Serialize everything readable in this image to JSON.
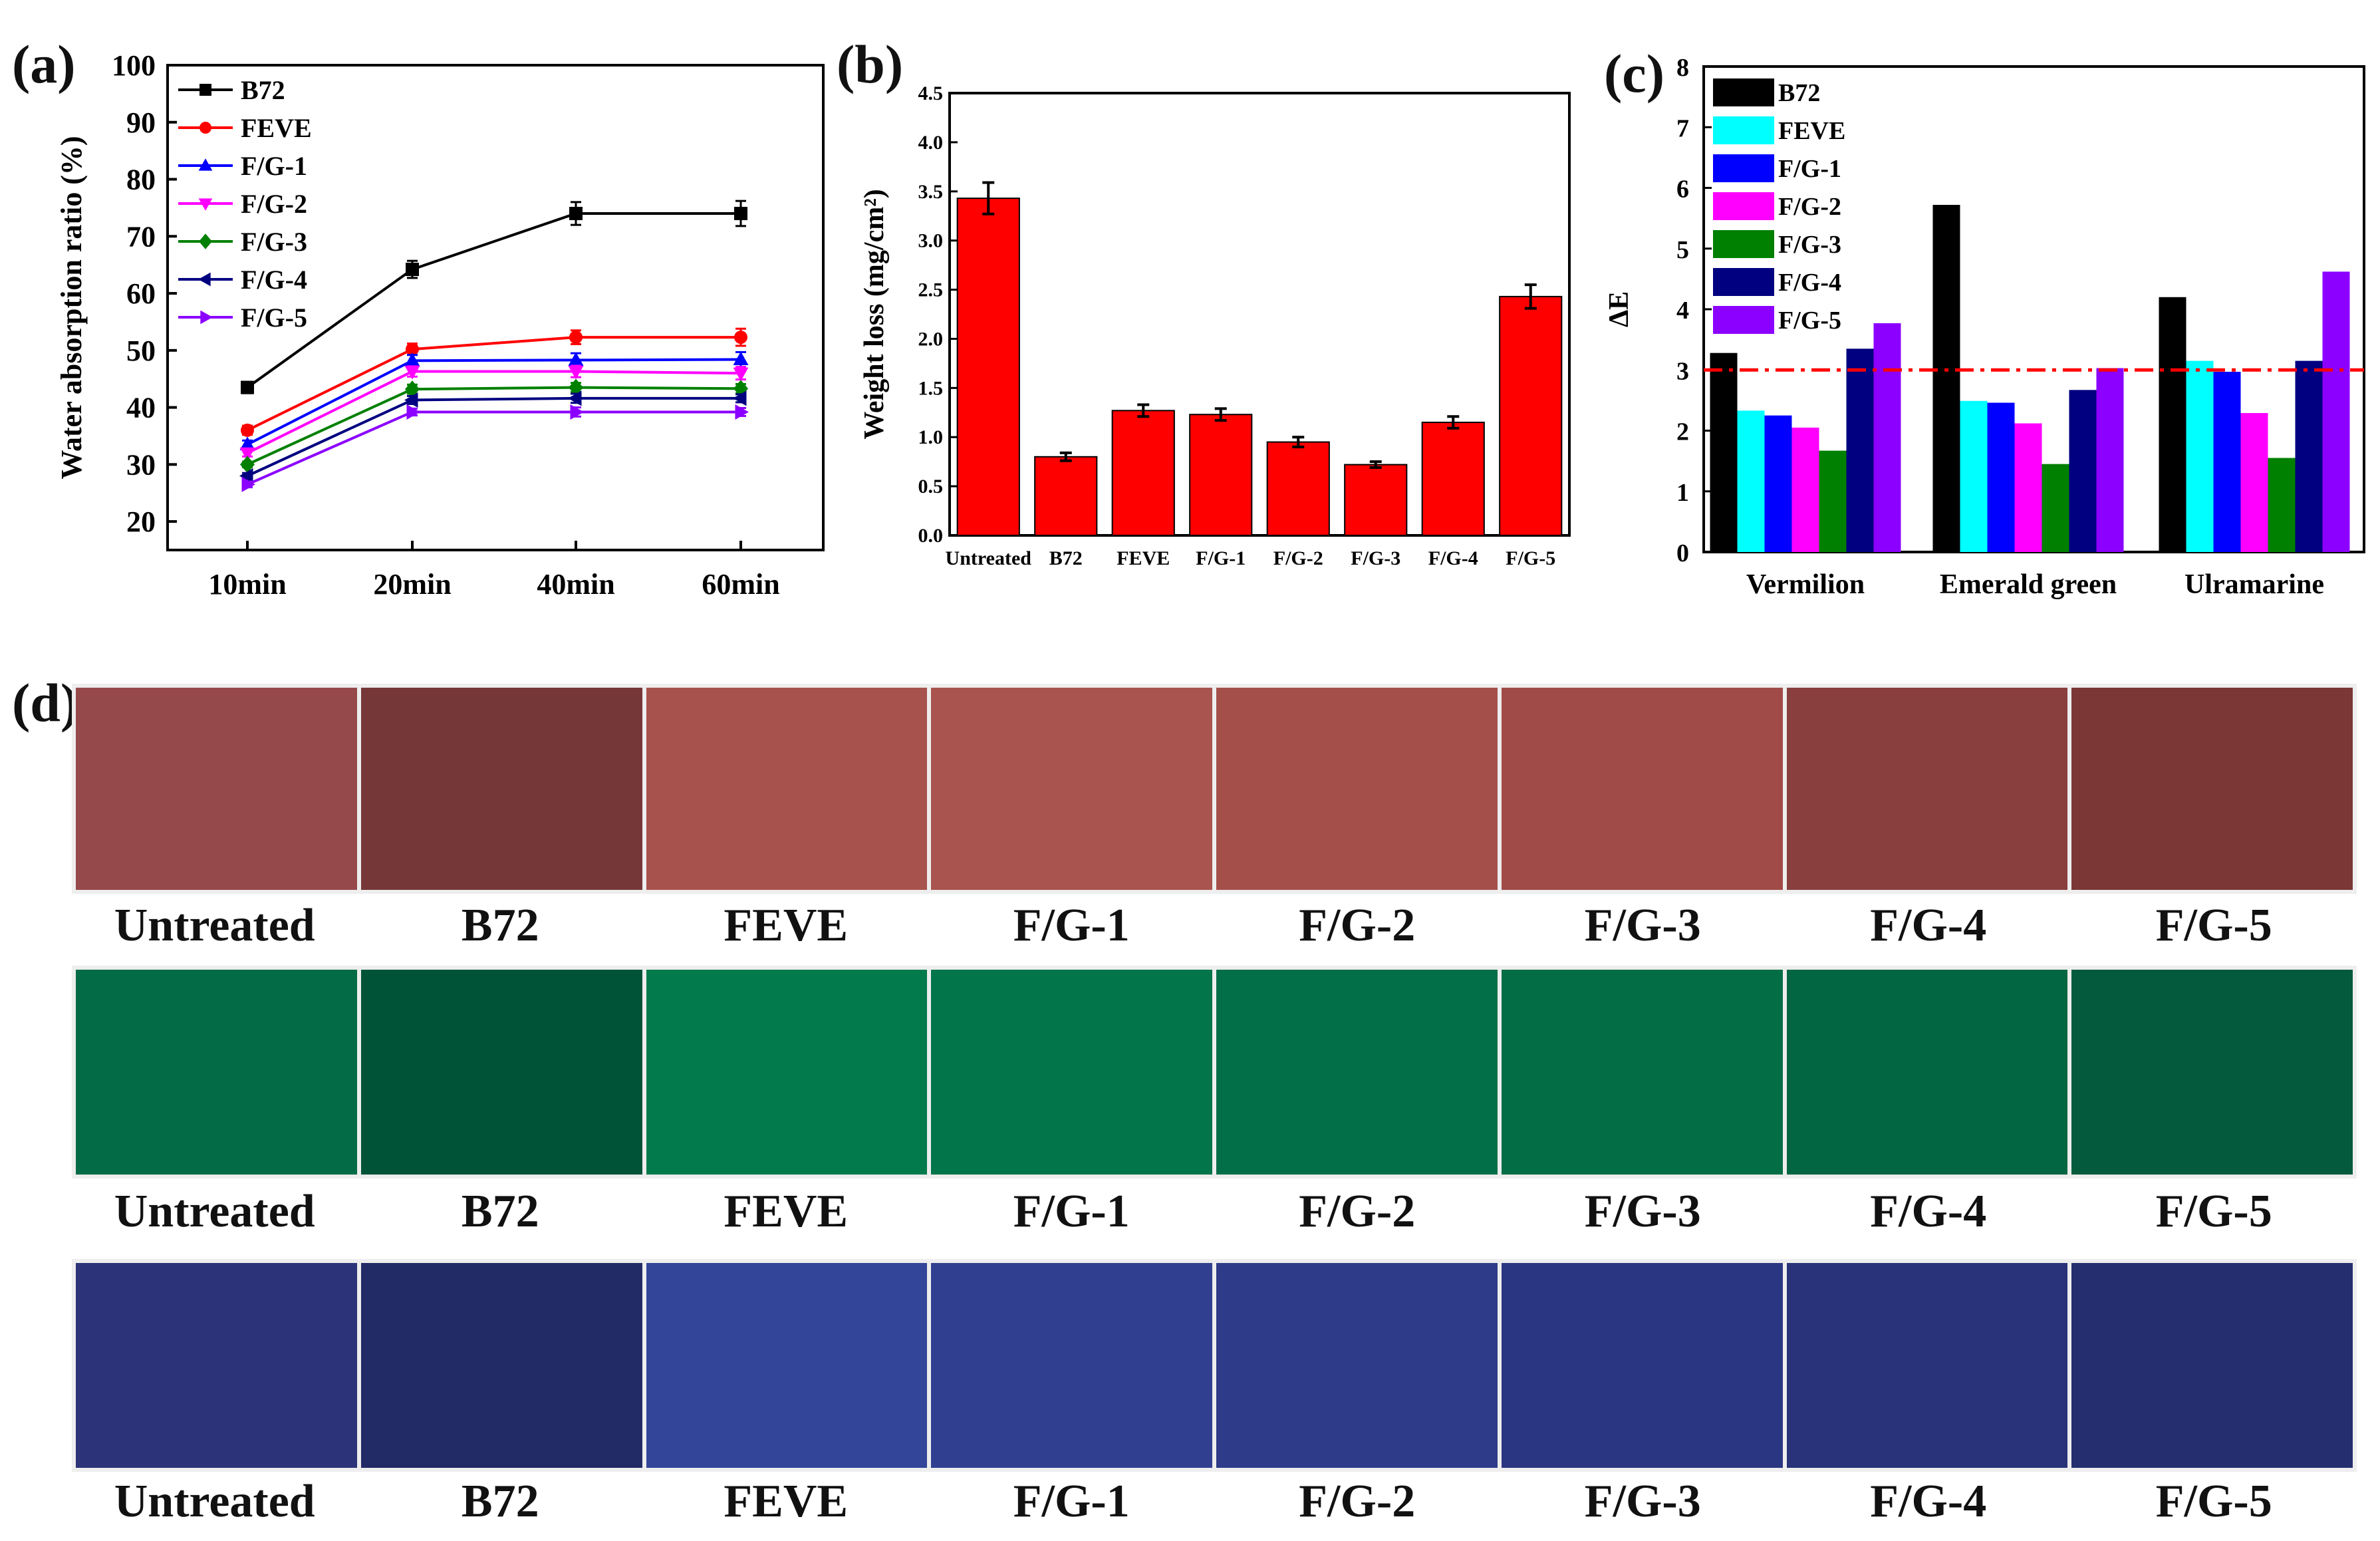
{
  "panel_labels": {
    "a": "(a)",
    "b": "(b)",
    "c": "(c)",
    "d": "(d)"
  },
  "chart_data": [
    {
      "id": "a",
      "type": "line",
      "title": "",
      "xlabel": "",
      "ylabel": "Water absorption ratio (%)",
      "categories": [
        "10min",
        "20min",
        "40min",
        "60min"
      ],
      "ylim": [
        15,
        100
      ],
      "yticks": [
        20,
        30,
        40,
        50,
        60,
        70,
        80,
        90,
        100
      ],
      "series": [
        {
          "name": "B72",
          "values": [
            43.5,
            64.2,
            74,
            74
          ],
          "errors": [
            1,
            1.5,
            2,
            2.2
          ],
          "color": "#000000",
          "marker": "square"
        },
        {
          "name": "FEVE",
          "values": [
            36,
            50.2,
            52.3,
            52.3
          ],
          "errors": [
            0.8,
            1,
            1.2,
            1.5
          ],
          "color": "#ff0000",
          "marker": "circle"
        },
        {
          "name": "F/G-1",
          "values": [
            33.5,
            48.2,
            48.3,
            48.4
          ],
          "errors": [
            0.7,
            1,
            1.2,
            1.3
          ],
          "color": "#0000ff",
          "marker": "triangle-up"
        },
        {
          "name": "F/G-2",
          "values": [
            32,
            46.3,
            46.3,
            46
          ],
          "errors": [
            0.6,
            0.9,
            1,
            1.1
          ],
          "color": "#ff00ff",
          "marker": "triangle-down"
        },
        {
          "name": "F/G-3",
          "values": [
            30,
            43.2,
            43.5,
            43.3
          ],
          "errors": [
            0.5,
            0.8,
            0.8,
            0.8
          ],
          "color": "#008000",
          "marker": "diamond"
        },
        {
          "name": "F/G-4",
          "values": [
            28,
            41.3,
            41.6,
            41.6
          ],
          "errors": [
            0.5,
            0.7,
            0.8,
            0.7
          ],
          "color": "#000080",
          "marker": "triangle-left"
        },
        {
          "name": "F/G-5",
          "values": [
            26.5,
            39.2,
            39.2,
            39.2
          ],
          "errors": [
            0.5,
            0.6,
            0.8,
            0.7
          ],
          "color": "#8b00ff",
          "marker": "triangle-right"
        }
      ]
    },
    {
      "id": "b",
      "type": "bar",
      "title": "",
      "xlabel": "",
      "ylabel": "Weight loss (mg/cm²)",
      "categories": [
        "Untreated",
        "B72",
        "FEVE",
        "F/G-1",
        "F/G-2",
        "F/G-3",
        "F/G-4",
        "F/G-5"
      ],
      "values": [
        3.43,
        0.8,
        1.27,
        1.23,
        0.95,
        0.72,
        1.15,
        2.43
      ],
      "errors": [
        0.16,
        0.04,
        0.06,
        0.06,
        0.05,
        0.03,
        0.06,
        0.12
      ],
      "ylim": [
        0,
        4.5
      ],
      "yticks": [
        "0.0",
        "0.5",
        "1.0",
        "1.5",
        "2.0",
        "2.5",
        "3.0",
        "3.5",
        "4.0",
        "4.5"
      ],
      "color": "#ff0000"
    },
    {
      "id": "c",
      "type": "bar",
      "title": "",
      "xlabel": "",
      "ylabel": "ΔE",
      "categories": [
        "Vermilion",
        "Emerald green",
        "Ulramarine"
      ],
      "ylim": [
        0,
        8
      ],
      "yticks": [
        0,
        1,
        2,
        3,
        4,
        5,
        6,
        7,
        8
      ],
      "threshold": 3,
      "series": [
        {
          "name": "B72",
          "values": [
            3.28,
            5.72,
            4.2
          ],
          "color": "#000000"
        },
        {
          "name": "FEVE",
          "values": [
            2.33,
            2.49,
            3.15
          ],
          "color": "#00ffff"
        },
        {
          "name": "F/G-1",
          "values": [
            2.25,
            2.46,
            2.97
          ],
          "color": "#0000ff"
        },
        {
          "name": "F/G-2",
          "values": [
            2.05,
            2.12,
            2.29
          ],
          "color": "#ff00ff"
        },
        {
          "name": "F/G-3",
          "values": [
            1.67,
            1.45,
            1.55
          ],
          "color": "#008000"
        },
        {
          "name": "F/G-4",
          "values": [
            3.35,
            2.67,
            3.15
          ],
          "color": "#000080"
        },
        {
          "name": "F/G-5",
          "values": [
            3.77,
            3.03,
            4.62
          ],
          "color": "#8b00ff"
        }
      ]
    }
  ],
  "swatches": {
    "labels": [
      "Untreated",
      "B72",
      "FEVE",
      "F/G-1",
      "F/G-2",
      "F/G-3",
      "F/G-4",
      "F/G-5"
    ],
    "vermilion": [
      "#96494a",
      "#763738",
      "#a8524d",
      "#a9544e",
      "#a54f4b",
      "#a04b47",
      "#893f3e",
      "#7a3736"
    ],
    "emerald": [
      "#046b47",
      "#005337",
      "#027a4c",
      "#03754b",
      "#036f48",
      "#036d46",
      "#036643",
      "#035a3c"
    ],
    "ultramarine": [
      "#2c3379",
      "#222b66",
      "#334599",
      "#313f91",
      "#2e3b89",
      "#2b3682",
      "#293379",
      "#252e6e"
    ]
  }
}
